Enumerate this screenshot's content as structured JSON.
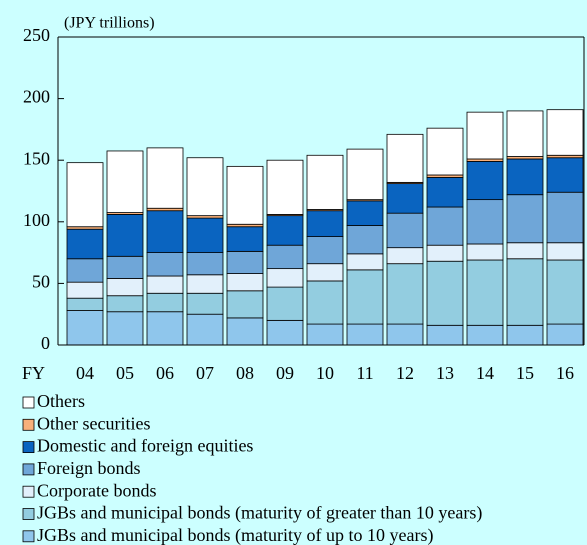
{
  "chart_data": {
    "type": "stacked_bar",
    "ylabel": "(JPY trillions)",
    "xlabel": "FY",
    "categories": [
      "04",
      "05",
      "06",
      "07",
      "08",
      "09",
      "10",
      "11",
      "12",
      "13",
      "14",
      "15",
      "16"
    ],
    "series": [
      {
        "name": "JGBs and municipal bonds (maturity of up to 10 years)",
        "color": "#8fc6ec",
        "values": [
          28,
          27,
          27,
          25,
          22,
          20,
          17,
          17,
          17,
          16,
          16,
          16,
          17
        ]
      },
      {
        "name": "JGBs and municipal bonds (maturity of greater than 10 years)",
        "color": "#93cde0",
        "values": [
          10,
          13,
          15,
          17,
          22,
          27,
          35,
          44,
          49,
          52,
          53,
          54,
          52
        ]
      },
      {
        "name": "Corporate bonds",
        "color": "#e2f0fb",
        "values": [
          13,
          14,
          14,
          15,
          14,
          15,
          14,
          13,
          13,
          13,
          13,
          13,
          14
        ]
      },
      {
        "name": "Foreign bonds",
        "color": "#6fa6d8",
        "values": [
          19,
          18,
          19,
          18,
          18,
          19,
          22,
          23,
          28,
          31,
          36,
          39,
          41
        ]
      },
      {
        "name": "Domestic and foreign equities",
        "color": "#0a64c0",
        "values": [
          24,
          34,
          34,
          28,
          20,
          24,
          21,
          20,
          24,
          24,
          31,
          29,
          28
        ]
      },
      {
        "name": "Other securities",
        "color": "#f8b07a",
        "values": [
          2,
          1.5,
          2,
          2,
          2,
          1,
          1,
          1,
          1,
          2,
          2,
          2,
          2
        ]
      },
      {
        "name": "Others",
        "color": "#ffffff",
        "values": [
          52,
          50,
          49,
          47,
          47,
          44,
          44,
          41,
          39,
          38,
          38,
          37,
          37
        ]
      }
    ],
    "ylim": [
      0,
      250
    ],
    "yticks": [
      0,
      50,
      100,
      150,
      200,
      250
    ]
  }
}
